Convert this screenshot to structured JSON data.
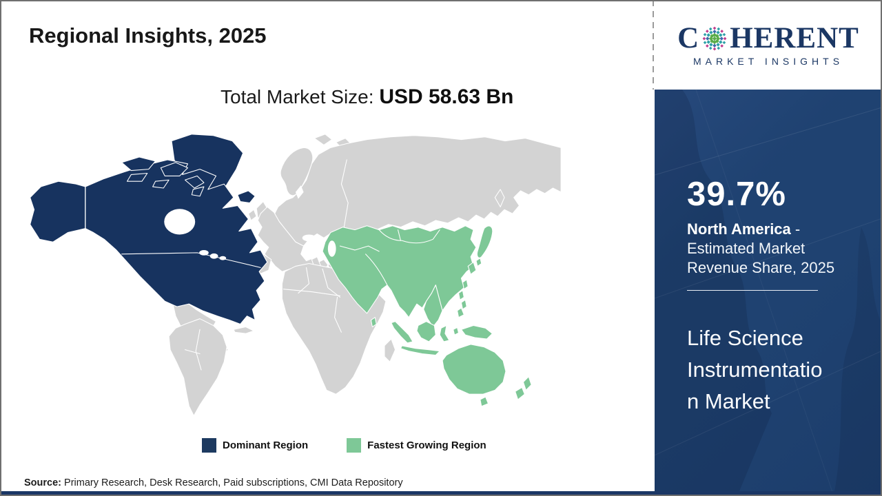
{
  "header": {
    "title": "Regional Insights, 2025"
  },
  "subtitle": {
    "label": "Total Market Size: ",
    "value": "USD 58.63 Bn"
  },
  "logo": {
    "name_part1": "C",
    "name_part2": "HERENT",
    "tagline": "MARKET INSIGHTS",
    "globe_icon": "dotted-globe-o"
  },
  "map": {
    "type": "choropleth-world",
    "regions": [
      {
        "name": "North America",
        "role": "dominant",
        "color": "#17335f"
      },
      {
        "name": "Asia Pacific",
        "role": "fastest_growing",
        "color": "#7ec897"
      }
    ],
    "other_land_color": "#d3d3d3",
    "border_color": "#ffffff"
  },
  "legend": {
    "items": [
      {
        "label": "Dominant Region",
        "color": "#1d3a60"
      },
      {
        "label": "Fastest Growing Region",
        "color": "#7ec897"
      }
    ]
  },
  "sidebar": {
    "share_value": "39.7%",
    "region_name": "North America",
    "share_description": " - Estimated Market Revenue Share, 2025",
    "market_name_lines": [
      "Life Science",
      "Instrumentatio",
      "n Market"
    ],
    "background_color": "#1f4271"
  },
  "source": {
    "label": "Source:",
    "text": " Primary Research, Desk Research, Paid subscriptions, CMI Data Repository"
  },
  "colors": {
    "dominant_navy": "#17335f",
    "fastest_growing_green": "#7ec897",
    "logo_navy": "#1b3764",
    "bottom_bar_navy": "#1b3765"
  }
}
